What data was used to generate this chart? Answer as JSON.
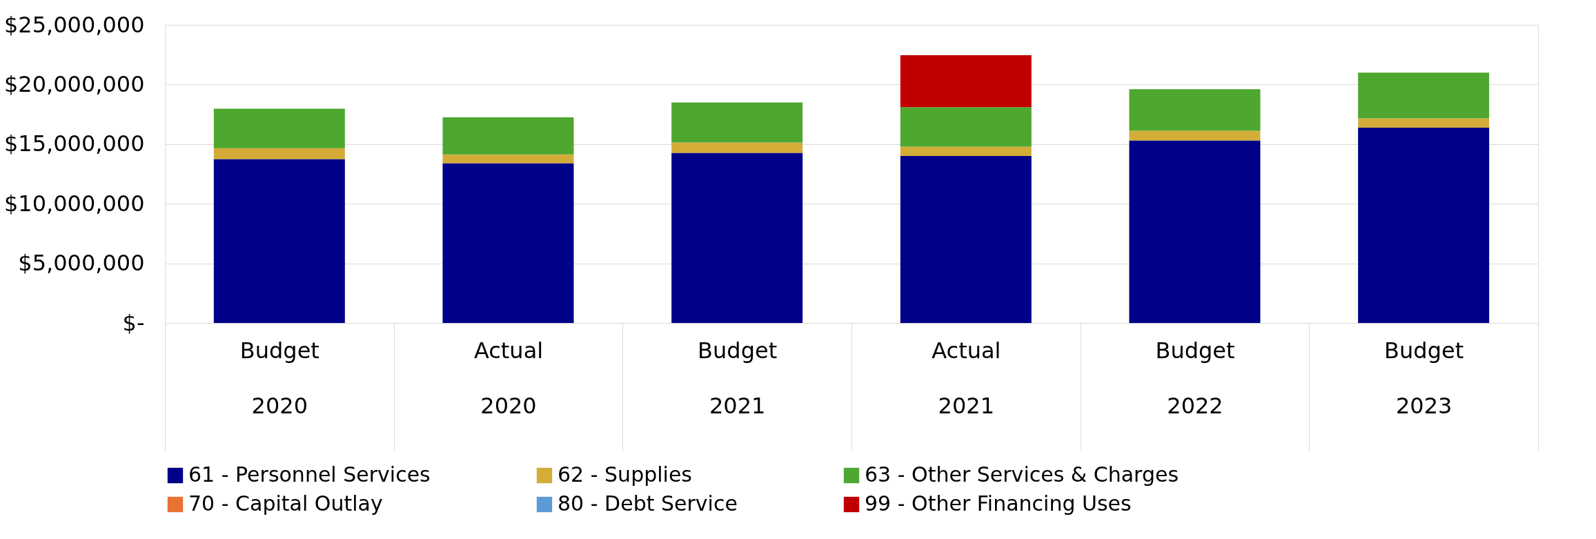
{
  "chart_data": {
    "type": "bar",
    "stacked": true,
    "categories": [
      "Budget 2020",
      "Actual 2020",
      "Budget 2021",
      "Actual 2021",
      "Budget 2022",
      "Budget 2023"
    ],
    "series": [
      {
        "name": "61 - Personnel Services",
        "color": "#000088",
        "values": [
          13750000,
          13400000,
          14270000,
          14000000,
          15300000,
          16380000
        ]
      },
      {
        "name": "62 - Supplies",
        "color": "#d4ac38",
        "values": [
          910000,
          740000,
          860000,
          780000,
          820000,
          780000
        ]
      },
      {
        "name": "63 - Other Services & Charges",
        "color": "#4ea72e",
        "values": [
          3310000,
          3100000,
          3360000,
          3320000,
          3490000,
          3830000
        ]
      },
      {
        "name": "70 - Capital Outlay",
        "color": "#e97132",
        "values": [
          0,
          0,
          0,
          0,
          0,
          0
        ]
      },
      {
        "name": "80 - Debt Service",
        "color": "#5b9bd5",
        "values": [
          0,
          0,
          0,
          0,
          0,
          0
        ]
      },
      {
        "name": "99 - Other Financing Uses",
        "color": "#c00000",
        "values": [
          0,
          0,
          0,
          4360000,
          0,
          0
        ]
      }
    ],
    "ylim": [
      0,
      25000000
    ],
    "yticks": [
      {
        "value": 0,
        "label": "$-"
      },
      {
        "value": 5000000,
        "label": "$5,000,000"
      },
      {
        "value": 10000000,
        "label": "$10,000,000"
      },
      {
        "value": 15000000,
        "label": "$15,000,000"
      },
      {
        "value": 20000000,
        "label": "$20,000,000"
      },
      {
        "value": 25000000,
        "label": "$25,000,000"
      }
    ],
    "grid": "y",
    "legend": "bottom"
  }
}
